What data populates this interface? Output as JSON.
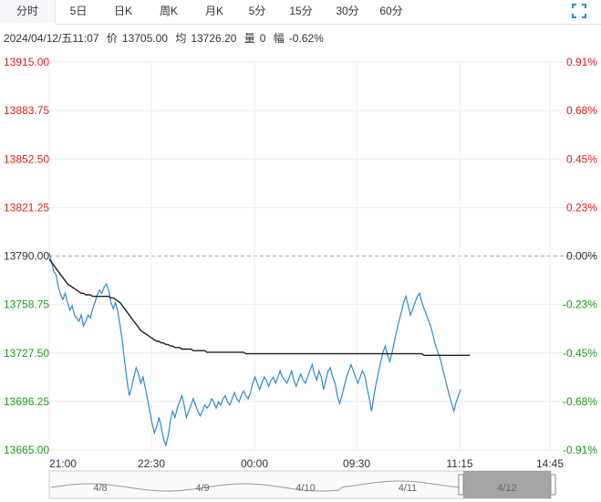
{
  "tabs": [
    {
      "label": "分时",
      "active": true
    },
    {
      "label": "5日"
    },
    {
      "label": "日K"
    },
    {
      "label": "周K"
    },
    {
      "label": "月K"
    },
    {
      "label": "5分"
    },
    {
      "label": "15分"
    },
    {
      "label": "30分"
    },
    {
      "label": "60分"
    }
  ],
  "info": {
    "datetime": "2024/04/12/五11:07",
    "price_label": "价",
    "price": "13705.00",
    "avg_label": "均",
    "avg": "13726.20",
    "vol_label": "量",
    "vol": "0",
    "range_label": "幅",
    "range": "-0.62%"
  },
  "colors": {
    "up": "#e02020",
    "down": "#1a9e1a",
    "neutral": "#333333",
    "price_line": "#2b8ad6",
    "avg_line": "#222222",
    "grid": "#eeeeee",
    "navigator_mask": "#888888"
  },
  "chart_data": {
    "type": "line",
    "y_left_ticks": [
      "13915.00",
      "13883.75",
      "13852.50",
      "13821.25",
      "13790.00",
      "13758.75",
      "13727.50",
      "13696.25",
      "13665.00"
    ],
    "y_right_ticks": [
      "0.91%",
      "0.68%",
      "0.45%",
      "0.23%",
      "0.00%",
      "-0.23%",
      "-0.45%",
      "-0.68%",
      "-0.91%"
    ],
    "y_range": [
      13665.0,
      13915.0
    ],
    "prev_close": 13790.0,
    "x_ticks": [
      "21:00",
      "22:30",
      "00:00",
      "09:30",
      "11:15",
      "14:45"
    ],
    "total_points": 220,
    "series": [
      {
        "key": "price",
        "values": [
          13792,
          13786,
          13780,
          13778,
          13770,
          13765,
          13762,
          13766,
          13760,
          13755,
          13758,
          13752,
          13750,
          13748,
          13752,
          13745,
          13748,
          13752,
          13750,
          13756,
          13760,
          13765,
          13768,
          13766,
          13770,
          13772,
          13768,
          13760,
          13756,
          13760,
          13754,
          13745,
          13735,
          13722,
          13710,
          13700,
          13705,
          13712,
          13718,
          13714,
          13708,
          13712,
          13705,
          13698,
          13690,
          13682,
          13676,
          13680,
          13686,
          13680,
          13672,
          13668,
          13674,
          13684,
          13690,
          13686,
          13692,
          13696,
          13700,
          13694,
          13686,
          13690,
          13694,
          13698,
          13694,
          13690,
          13687,
          13690,
          13694,
          13692,
          13694,
          13698,
          13696,
          13692,
          13696,
          13694,
          13698,
          13700,
          13696,
          13694,
          13698,
          13702,
          13698,
          13696,
          13700,
          13703,
          13700,
          13698,
          13702,
          13708,
          13712,
          13708,
          13704,
          13708,
          13712,
          13710,
          13706,
          13710,
          13712,
          13708,
          13712,
          13716,
          13712,
          13710,
          13708,
          13712,
          13716,
          13710,
          13706,
          13710,
          13714,
          13710,
          13708,
          13712,
          13716,
          13720,
          13714,
          13710,
          13716,
          13712,
          13704,
          13710,
          13716,
          13718,
          13712,
          13708,
          13700,
          13695,
          13700,
          13706,
          13712,
          13716,
          13720,
          13716,
          13712,
          13708,
          13712,
          13716,
          13713,
          13705,
          13698,
          13690,
          13700,
          13708,
          13715,
          13722,
          13728,
          13732,
          13726,
          13722,
          13728,
          13735,
          13742,
          13748,
          13754,
          13760,
          13764,
          13758,
          13752,
          13756,
          13760,
          13764,
          13766,
          13760,
          13756,
          13752,
          13748,
          13744,
          13738,
          13732,
          13728,
          13724,
          13718,
          13712,
          13706,
          13700,
          13695,
          13690,
          13696,
          13700,
          13704
        ],
        "name": ""
      },
      {
        "key": "avg",
        "values": [
          13788,
          13786,
          13784,
          13782,
          13780,
          13778,
          13776,
          13774,
          13772,
          13771,
          13770,
          13769,
          13768,
          13767,
          13766,
          13766,
          13765,
          13765,
          13765,
          13764,
          13764,
          13764,
          13764,
          13764,
          13764,
          13764,
          13764,
          13763,
          13763,
          13762,
          13761,
          13760,
          13758,
          13756,
          13754,
          13752,
          13750,
          13748,
          13746,
          13744,
          13742,
          13741,
          13740,
          13739,
          13738,
          13737,
          13736,
          13735,
          13735,
          13734,
          13734,
          13733,
          13733,
          13732,
          13732,
          13731,
          13731,
          13731,
          13730,
          13730,
          13730,
          13730,
          13730,
          13729,
          13729,
          13729,
          13729,
          13729,
          13729,
          13728,
          13728,
          13728,
          13728,
          13728,
          13728,
          13728,
          13728,
          13728,
          13728,
          13728,
          13728,
          13728,
          13728,
          13728,
          13728,
          13728,
          13727,
          13727,
          13727,
          13727,
          13727,
          13727,
          13727,
          13727,
          13727,
          13727,
          13727,
          13727,
          13727,
          13727,
          13727,
          13727,
          13727,
          13727,
          13727,
          13727,
          13727,
          13727,
          13727,
          13727,
          13727,
          13727,
          13727,
          13727,
          13727,
          13727,
          13727,
          13727,
          13727,
          13727,
          13727,
          13727,
          13727,
          13727,
          13727,
          13727,
          13727,
          13727,
          13727,
          13727,
          13727,
          13727,
          13727,
          13727,
          13727,
          13727,
          13727,
          13727,
          13727,
          13727,
          13727,
          13727,
          13727,
          13727,
          13727,
          13727,
          13727,
          13727,
          13727,
          13727,
          13727,
          13727,
          13727,
          13727,
          13727,
          13727,
          13727,
          13727,
          13727,
          13727,
          13727,
          13727,
          13727,
          13727,
          13726,
          13726,
          13726,
          13726,
          13726,
          13726,
          13726,
          13726,
          13726,
          13726,
          13726,
          13726,
          13726,
          13726,
          13726,
          13726,
          13726,
          13726,
          13726,
          13726,
          13726
        ],
        "name": ""
      }
    ],
    "navigator_labels": [
      "4/8",
      "4/9",
      "4/10",
      "4/11",
      "4/12"
    ],
    "grid": true
  }
}
